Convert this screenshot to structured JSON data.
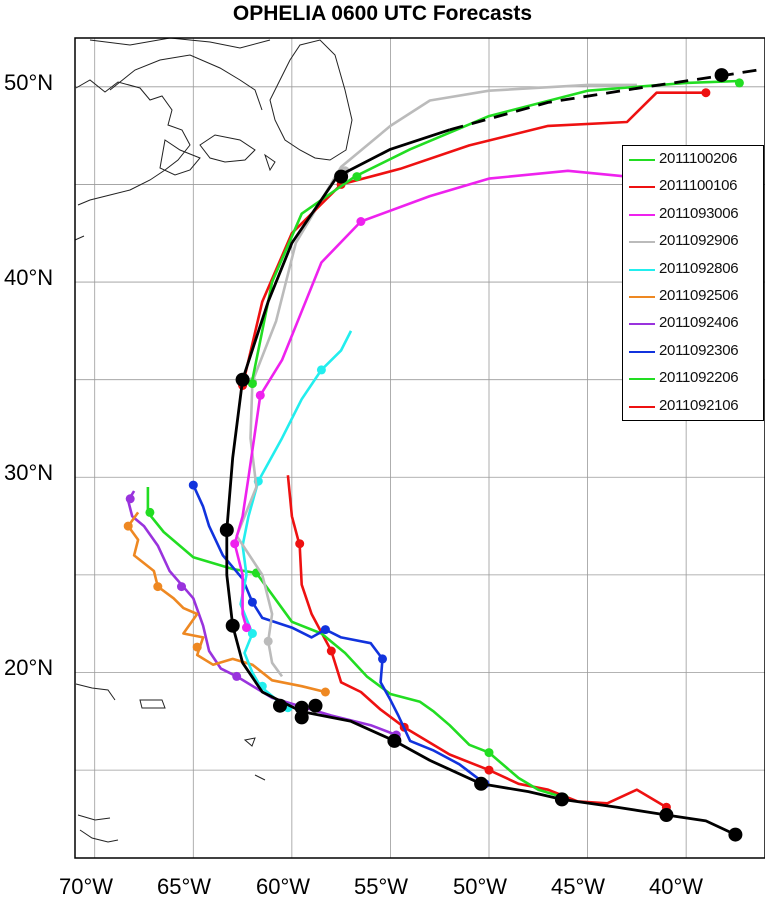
{
  "title": "OPHELIA 0600 UTC Forecasts",
  "x_axis_labels": [
    "70°W",
    "65°W",
    "60°W",
    "55°W",
    "50°W",
    "45°W",
    "40°W"
  ],
  "y_axis_labels": [
    "50°N",
    "40°N",
    "30°N",
    "20°N"
  ],
  "map_extent": {
    "lon_min": -71,
    "lon_max": -36,
    "lat_min": 10.5,
    "lat_max": 52.5
  },
  "legend": [
    {
      "label": "2011100206",
      "color": "#22dd22"
    },
    {
      "label": "2011100106",
      "color": "#ee1111"
    },
    {
      "label": "2011093006",
      "color": "#ee22ee"
    },
    {
      "label": "2011092906",
      "color": "#bbbbbb"
    },
    {
      "label": "2011092806",
      "color": "#22eeee"
    },
    {
      "label": "2011092506",
      "color": "#ee8822"
    },
    {
      "label": "2011092406",
      "color": "#9933dd"
    },
    {
      "label": "2011092306",
      "color": "#1133dd"
    },
    {
      "label": "2011092206",
      "color": "#22dd22"
    },
    {
      "label": "2011092106",
      "color": "#ee1111"
    }
  ],
  "chart_data": {
    "type": "map-tracks",
    "best_track": {
      "color": "#000000",
      "solid": [
        [
          -37.5,
          11.7
        ],
        [
          -39,
          12.4
        ],
        [
          -41,
          12.7
        ],
        [
          -43.5,
          13.1
        ],
        [
          -46.3,
          13.5
        ],
        [
          -48,
          13.9
        ],
        [
          -50.4,
          14.3
        ],
        [
          -53,
          15.5
        ],
        [
          -54.8,
          16.5
        ],
        [
          -57,
          17.5
        ],
        [
          -59.5,
          18.0
        ],
        [
          -61.5,
          19.0
        ],
        [
          -62.5,
          20.5
        ],
        [
          -63,
          22.4
        ],
        [
          -63.3,
          25
        ],
        [
          -63.3,
          27.3
        ],
        [
          -63,
          31
        ],
        [
          -62.5,
          35
        ],
        [
          -61.2,
          39
        ],
        [
          -60,
          42
        ],
        [
          -57.7,
          45.4
        ],
        [
          -55,
          46.8
        ],
        [
          -52,
          47.8
        ]
      ],
      "dashed": [
        [
          -52,
          47.8
        ],
        [
          -47,
          49.2
        ],
        [
          -42,
          50.0
        ],
        [
          -38,
          50.6
        ],
        [
          -35.5,
          51.0
        ]
      ],
      "markers": [
        [
          -37.5,
          11.7
        ],
        [
          -41,
          12.7
        ],
        [
          -46.3,
          13.5
        ],
        [
          -50.4,
          14.3
        ],
        [
          -54.8,
          16.5
        ],
        [
          -58.8,
          18.3
        ],
        [
          -59.5,
          18.2
        ],
        [
          -59.5,
          17.7
        ],
        [
          -60.6,
          18.3
        ],
        [
          -63,
          22.4
        ],
        [
          -63.3,
          27.3
        ],
        [
          -62.5,
          35
        ],
        [
          -57.5,
          45.4
        ],
        [
          -38.2,
          50.6
        ]
      ]
    },
    "forecast_tracks": [
      {
        "name": "2011100206",
        "color": "#22dd22",
        "points": [
          [
            -37.3,
            50.3
          ],
          [
            -40,
            50.2
          ],
          [
            -45,
            49.8
          ],
          [
            -50,
            48.5
          ],
          [
            -54,
            46.8
          ],
          [
            -56.8,
            45.4
          ],
          [
            -59.5,
            43.5
          ],
          [
            -61,
            40
          ],
          [
            -62,
            35
          ]
        ],
        "markers": [
          [
            -37.3,
            50.2
          ],
          [
            -56.7,
            45.4
          ],
          [
            -62,
            34.8
          ]
        ]
      },
      {
        "name": "2011100106",
        "color": "#ee1111",
        "points": [
          [
            -39,
            49.7
          ],
          [
            -41.5,
            49.7
          ],
          [
            -43,
            48.2
          ],
          [
            -47,
            48.0
          ],
          [
            -51,
            47.0
          ],
          [
            -54.5,
            45.8
          ],
          [
            -57.5,
            45.0
          ],
          [
            -60,
            42.5
          ],
          [
            -61.5,
            39
          ],
          [
            -62.5,
            34.7
          ]
        ],
        "markers": [
          [
            -39,
            49.7
          ],
          [
            -57.5,
            45.0
          ],
          [
            -62.5,
            34.7
          ]
        ]
      },
      {
        "name": "2011093006",
        "color": "#ee22ee",
        "points": [
          [
            -43,
            45.4
          ],
          [
            -46,
            45.7
          ],
          [
            -50,
            45.3
          ],
          [
            -53,
            44.4
          ],
          [
            -56.5,
            43.1
          ],
          [
            -58.5,
            41
          ],
          [
            -59.5,
            38.5
          ],
          [
            -60.5,
            36
          ],
          [
            -61.6,
            34.2
          ],
          [
            -62.2,
            30
          ],
          [
            -62.5,
            28
          ],
          [
            -62.9,
            26.6
          ],
          [
            -62.5,
            25
          ],
          [
            -62.5,
            23
          ],
          [
            -62.3,
            22.3
          ]
        ],
        "markers": [
          [
            -43,
            45.4
          ],
          [
            -56.5,
            43.1
          ],
          [
            -61.6,
            34.2
          ],
          [
            -62.9,
            26.6
          ],
          [
            -62.3,
            22.3
          ]
        ]
      },
      {
        "name": "2011092906",
        "color": "#bbbbbb",
        "points": [
          [
            -42.5,
            50.1
          ],
          [
            -45,
            50.1
          ],
          [
            -50,
            49.8
          ],
          [
            -53,
            49.3
          ],
          [
            -55,
            48.0
          ],
          [
            -57.5,
            45.9
          ],
          [
            -59.8,
            42
          ],
          [
            -60.8,
            38
          ],
          [
            -62,
            34.9
          ],
          [
            -62.1,
            32
          ],
          [
            -61.8,
            29.5
          ],
          [
            -62.8,
            27
          ],
          [
            -61.5,
            25
          ],
          [
            -61.0,
            23
          ],
          [
            -61.2,
            21.6
          ],
          [
            -61,
            20.5
          ],
          [
            -60.5,
            19.8
          ]
        ],
        "markers": [
          [
            -57.3,
            45.7
          ],
          [
            -62,
            34.9
          ],
          [
            -61.2,
            21.6
          ]
        ]
      },
      {
        "name": "2011092806",
        "color": "#22eeee",
        "points": [
          [
            -57,
            37.5
          ],
          [
            -57.5,
            36.5
          ],
          [
            -58.5,
            35.5
          ],
          [
            -59.5,
            34
          ],
          [
            -60.5,
            32
          ],
          [
            -61.7,
            29.8
          ],
          [
            -62.2,
            28
          ],
          [
            -62.5,
            26.5
          ],
          [
            -62.3,
            25
          ],
          [
            -62.6,
            23.5
          ],
          [
            -62,
            22
          ],
          [
            -62.4,
            21
          ],
          [
            -62,
            20
          ],
          [
            -61.6,
            19.3
          ],
          [
            -61,
            18.8
          ],
          [
            -60.3,
            18.2
          ]
        ],
        "markers": [
          [
            -58.5,
            35.5
          ],
          [
            -61.7,
            29.8
          ],
          [
            -62,
            22
          ],
          [
            -61.5,
            19.3
          ],
          [
            -60.2,
            18.2
          ]
        ]
      },
      {
        "name": "2011092506",
        "color": "#ee8822",
        "points": [
          [
            -58.3,
            19.0
          ],
          [
            -59.5,
            19.3
          ],
          [
            -61,
            19.6
          ],
          [
            -62,
            20.4
          ],
          [
            -63,
            20.7
          ],
          [
            -64,
            20.4
          ],
          [
            -64.8,
            20.9
          ],
          [
            -64.5,
            21.8
          ],
          [
            -65.5,
            22
          ],
          [
            -64.8,
            23.0
          ],
          [
            -65.5,
            23.3
          ],
          [
            -66,
            23.8
          ],
          [
            -66.8,
            24.4
          ],
          [
            -67,
            25.2
          ],
          [
            -68,
            26
          ],
          [
            -67.8,
            26.8
          ],
          [
            -68.3,
            27.5
          ],
          [
            -67.8,
            28.2
          ]
        ],
        "markers": [
          [
            -58.3,
            19.0
          ],
          [
            -64.8,
            21.3
          ],
          [
            -66.8,
            24.4
          ],
          [
            -68.3,
            27.5
          ]
        ]
      },
      {
        "name": "2011092406",
        "color": "#9933dd",
        "points": [
          [
            -54.7,
            16.8
          ],
          [
            -56,
            17.3
          ],
          [
            -58,
            17.8
          ],
          [
            -60,
            18.4
          ],
          [
            -61,
            18.7
          ],
          [
            -62.8,
            19.8
          ],
          [
            -63.6,
            20.2
          ],
          [
            -64.2,
            21.1
          ],
          [
            -64.5,
            22.4
          ],
          [
            -65,
            23.8
          ],
          [
            -65.6,
            24.5
          ],
          [
            -66.2,
            25.2
          ],
          [
            -66.8,
            26.5
          ],
          [
            -67.5,
            27.5
          ],
          [
            -68.1,
            28
          ],
          [
            -68.3,
            28.8
          ],
          [
            -68,
            29.3
          ]
        ],
        "markers": [
          [
            -54.7,
            16.8
          ],
          [
            -62.8,
            19.8
          ],
          [
            -65.6,
            24.4
          ],
          [
            -68.2,
            28.9
          ]
        ]
      },
      {
        "name": "2011092306",
        "color": "#1133dd",
        "points": [
          [
            -50.2,
            14.3
          ],
          [
            -51.5,
            15.3
          ],
          [
            -52.8,
            16
          ],
          [
            -54,
            16.5
          ],
          [
            -54.6,
            17.8
          ],
          [
            -55,
            18.6
          ],
          [
            -55.5,
            19.5
          ],
          [
            -55.4,
            20.7
          ],
          [
            -56,
            21.5
          ],
          [
            -57.5,
            21.8
          ],
          [
            -58.3,
            22.2
          ],
          [
            -59,
            21.8
          ],
          [
            -60,
            22.3
          ],
          [
            -61.5,
            22.8
          ],
          [
            -62,
            23.6
          ],
          [
            -62.5,
            24.8
          ],
          [
            -63.5,
            26
          ],
          [
            -64.2,
            27.5
          ],
          [
            -64.5,
            28.5
          ],
          [
            -65,
            29.6
          ]
        ],
        "markers": [
          [
            -50.2,
            14.3
          ],
          [
            -55.4,
            20.7
          ],
          [
            -58.3,
            22.2
          ],
          [
            -62,
            23.6
          ],
          [
            -65,
            29.6
          ]
        ]
      },
      {
        "name": "2011092206",
        "color": "#22dd22",
        "points": [
          [
            -46.2,
            13.6
          ],
          [
            -47.5,
            14
          ],
          [
            -48.5,
            14.6
          ],
          [
            -50,
            15.9
          ],
          [
            -51,
            16.3
          ],
          [
            -52,
            17.3
          ],
          [
            -52.8,
            18.0
          ],
          [
            -53.5,
            18.5
          ],
          [
            -55,
            18.9
          ],
          [
            -56.2,
            19.8
          ],
          [
            -57.3,
            21
          ],
          [
            -58.5,
            22
          ],
          [
            -60,
            22.6
          ],
          [
            -61.8,
            25.1
          ],
          [
            -63,
            25.3
          ],
          [
            -65,
            25.9
          ],
          [
            -66.5,
            27.2
          ],
          [
            -67.3,
            28.2
          ],
          [
            -67.3,
            29.5
          ]
        ],
        "markers": [
          [
            -46.2,
            13.6
          ],
          [
            -50,
            15.9
          ],
          [
            -61.8,
            25.1
          ],
          [
            -67.2,
            28.2
          ]
        ]
      },
      {
        "name": "2011092106",
        "color": "#ee1111",
        "points": [
          [
            -41,
            13.1
          ],
          [
            -42.5,
            14.0
          ],
          [
            -44,
            13.3
          ],
          [
            -45.5,
            13.4
          ],
          [
            -47,
            14.0
          ],
          [
            -48.5,
            14.3
          ],
          [
            -50,
            15.0
          ],
          [
            -52,
            15.8
          ],
          [
            -54.3,
            17.2
          ],
          [
            -55.5,
            18.1
          ],
          [
            -56.5,
            19.0
          ],
          [
            -57.5,
            19.5
          ],
          [
            -58,
            21.1
          ],
          [
            -59,
            23
          ],
          [
            -59.5,
            24.5
          ],
          [
            -59.6,
            26.5
          ],
          [
            -60,
            28
          ],
          [
            -60.2,
            30.1
          ]
        ],
        "markers": [
          [
            -41,
            13.1
          ],
          [
            -50,
            15.0
          ],
          [
            -54.3,
            17.2
          ],
          [
            -58,
            21.1
          ],
          [
            -59.6,
            26.6
          ]
        ]
      }
    ]
  }
}
